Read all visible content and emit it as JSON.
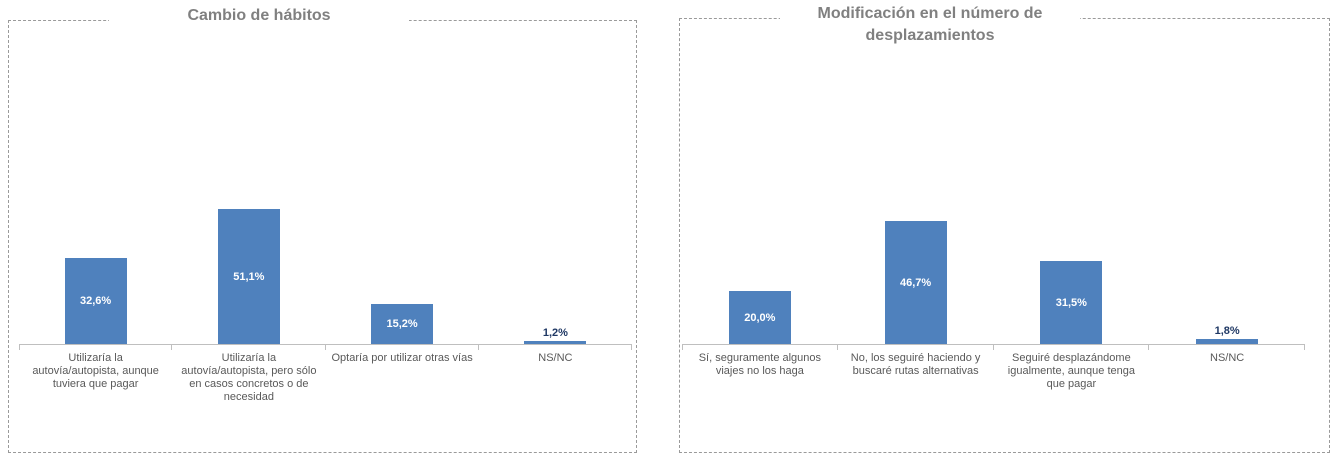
{
  "chart_data": [
    {
      "type": "bar",
      "title": "Cambio de hábitos",
      "categories": [
        "Utilizaría la autovía/autopista, aunque tuviera que pagar",
        "Utilizaría la autovía/autopista, pero sólo en casos concretos o de necesidad",
        "Optaría por utilizar otras vías",
        "NS/NC"
      ],
      "values": [
        32.6,
        51.1,
        15.2,
        1.2
      ],
      "value_labels": [
        "32,6%",
        "51,1%",
        "15,2%",
        "1,2%"
      ],
      "xlabel": "",
      "ylabel": "",
      "ylim": [
        0,
        60
      ],
      "grid": false,
      "legend": "none",
      "y_axis_visible": false,
      "bar_color": "#4f81bd",
      "label_color_inside": "#ffffff",
      "label_color_outside": "#1f3864"
    },
    {
      "type": "bar",
      "title": "Modificación en el número de desplazamientos",
      "categories": [
        "Sí, seguramente algunos viajes no los haga",
        "No, los seguiré haciendo y buscaré rutas alternativas",
        "Seguiré desplazándome igualmente, aunque tenga que pagar",
        "NS/NC"
      ],
      "values": [
        20.0,
        46.7,
        31.5,
        1.8
      ],
      "value_labels": [
        "20,0%",
        "46,7%",
        "31,5%",
        "1,8%"
      ],
      "xlabel": "",
      "ylabel": "",
      "ylim": [
        0,
        60
      ],
      "grid": false,
      "legend": "none",
      "y_axis_visible": false,
      "bar_color": "#4f81bd",
      "label_color_inside": "#ffffff",
      "label_color_outside": "#1f3864"
    }
  ],
  "styles": {
    "title_color": "#808080",
    "axis_line_color": "#bfbfbf",
    "category_label_color": "#595959",
    "panel_border_color": "#9a9a9a"
  }
}
